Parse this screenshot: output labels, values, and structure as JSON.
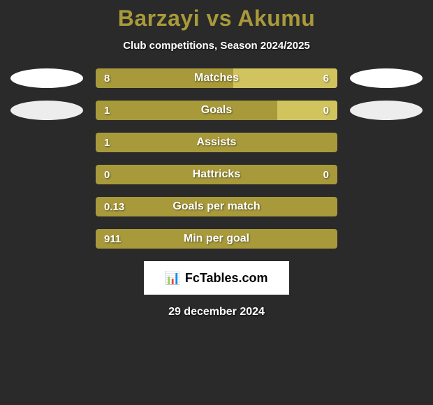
{
  "title": "Barzayi vs Akumu",
  "subtitle": "Club competitions, Season 2024/2025",
  "colors": {
    "background": "#2a2a2a",
    "title": "#a89a3a",
    "bar_base": "#a89a3a",
    "bar_fill": "#d1c45e",
    "text": "#ffffff",
    "badge": "#ffffff",
    "badge_dim": "#ededed"
  },
  "rows": [
    {
      "label": "Matches",
      "left": "8",
      "right": "6",
      "right_fill_pct": 43,
      "badges": true,
      "badges_dim": false
    },
    {
      "label": "Goals",
      "left": "1",
      "right": "0",
      "right_fill_pct": 25,
      "badges": true,
      "badges_dim": true
    },
    {
      "label": "Assists",
      "left": "1",
      "right": "",
      "right_fill_pct": 0,
      "badges": false,
      "badges_dim": false
    },
    {
      "label": "Hattricks",
      "left": "0",
      "right": "0",
      "right_fill_pct": 0,
      "badges": false,
      "badges_dim": false
    },
    {
      "label": "Goals per match",
      "left": "0.13",
      "right": "",
      "right_fill_pct": 0,
      "badges": false,
      "badges_dim": false
    },
    {
      "label": "Min per goal",
      "left": "911",
      "right": "",
      "right_fill_pct": 0,
      "badges": false,
      "badges_dim": false
    }
  ],
  "logo": {
    "icon": "📊",
    "text": "FcTables.com"
  },
  "date": "29 december 2024"
}
